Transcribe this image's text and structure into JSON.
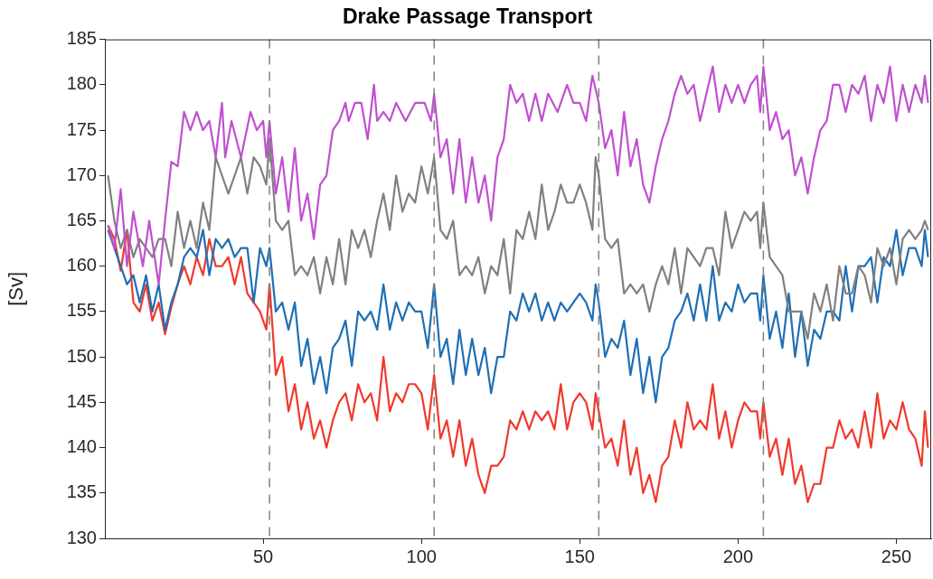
{
  "chart_data": {
    "type": "line",
    "title": "Drake Passage Transport",
    "ylabel": "[Sv]",
    "xlim": [
      0,
      261
    ],
    "xticks": [
      50,
      100,
      150,
      200,
      250
    ],
    "ylim": [
      130,
      185
    ],
    "yticks": [
      130,
      135,
      140,
      145,
      150,
      155,
      160,
      165,
      170,
      175,
      180,
      185
    ],
    "grid": false,
    "legend": false,
    "marker": "none",
    "line_style": "solid",
    "ref_lines": [
      {
        "axis": "x",
        "value": 52,
        "color": "#808080",
        "line_style": "dashed"
      },
      {
        "axis": "x",
        "value": 104,
        "color": "#808080",
        "line_style": "dashed"
      },
      {
        "axis": "x",
        "value": 156,
        "color": "#808080",
        "line_style": "dashed"
      },
      {
        "axis": "x",
        "value": 208,
        "color": "#808080",
        "line_style": "dashed"
      }
    ],
    "series": [
      {
        "color": "#c050d0",
        "x": [
          1,
          3,
          5,
          7,
          9,
          12,
          14,
          17,
          19,
          21,
          23,
          25,
          27,
          29,
          31,
          33,
          35,
          37,
          38,
          40,
          43,
          46,
          48,
          50,
          51,
          52,
          54,
          56,
          58,
          60,
          62,
          64,
          66,
          68,
          70,
          72,
          74,
          76,
          77,
          79,
          81,
          83,
          85,
          86,
          88,
          90,
          92,
          95,
          98,
          101,
          103,
          104,
          106,
          108,
          110,
          112,
          114,
          116,
          118,
          120,
          122,
          124,
          126,
          128,
          130,
          132,
          134,
          136,
          138,
          140,
          143,
          146,
          148,
          150,
          152,
          154,
          156,
          158,
          160,
          162,
          164,
          166,
          168,
          170,
          172,
          174,
          176,
          178,
          180,
          182,
          184,
          186,
          188,
          190,
          192,
          194,
          196,
          198,
          200,
          202,
          204,
          206,
          207,
          208,
          210,
          212,
          214,
          216,
          218,
          220,
          222,
          224,
          226,
          228,
          230,
          232,
          234,
          236,
          238,
          240,
          242,
          244,
          246,
          248,
          250,
          252,
          254,
          256,
          258,
          259,
          260
        ],
        "values": [
          164.5,
          162,
          168.5,
          160,
          166,
          160,
          165,
          158,
          165,
          171.5,
          171,
          177,
          175,
          177,
          175,
          176,
          172,
          178,
          172,
          176,
          172,
          177,
          175,
          176,
          172,
          176,
          168,
          172,
          166,
          173,
          165,
          168,
          163,
          169,
          170,
          175,
          176,
          178,
          176,
          178,
          178,
          174,
          180,
          176,
          177,
          176,
          178,
          176,
          178,
          178,
          176,
          179,
          172,
          174,
          168,
          174,
          167,
          172,
          167,
          170,
          165,
          172,
          174,
          180,
          178,
          179,
          176,
          179,
          176,
          179,
          177,
          180,
          178,
          178,
          176,
          181,
          178,
          173,
          175,
          170,
          177,
          171,
          174,
          169,
          167,
          171,
          174,
          176,
          179,
          181,
          179,
          180,
          176,
          179,
          182,
          177,
          180,
          178,
          180,
          178,
          180,
          181,
          177,
          182,
          175,
          177,
          174,
          175,
          170,
          172,
          168,
          172,
          175,
          176,
          180,
          180,
          177,
          180,
          179,
          181,
          176,
          180,
          178,
          182,
          176,
          180,
          177,
          180,
          178,
          181,
          178
        ]
      },
      {
        "color": "#808080",
        "x": [
          1,
          3,
          5,
          7,
          9,
          11,
          13,
          15,
          17,
          19,
          21,
          23,
          25,
          27,
          29,
          31,
          33,
          35,
          37,
          39,
          41,
          43,
          45,
          47,
          49,
          51,
          52,
          54,
          56,
          58,
          60,
          62,
          64,
          66,
          68,
          70,
          72,
          74,
          76,
          78,
          80,
          82,
          84,
          86,
          88,
          90,
          92,
          94,
          96,
          98,
          100,
          102,
          104,
          106,
          108,
          110,
          112,
          114,
          116,
          118,
          120,
          122,
          124,
          126,
          128,
          130,
          132,
          134,
          136,
          138,
          140,
          142,
          144,
          146,
          148,
          150,
          152,
          154,
          155,
          156,
          158,
          160,
          162,
          164,
          166,
          168,
          170,
          172,
          174,
          176,
          178,
          180,
          182,
          184,
          186,
          188,
          190,
          192,
          194,
          196,
          198,
          200,
          202,
          204,
          206,
          207,
          208,
          210,
          212,
          214,
          216,
          218,
          220,
          222,
          224,
          226,
          228,
          230,
          232,
          234,
          236,
          238,
          240,
          242,
          244,
          246,
          248,
          250,
          252,
          254,
          256,
          258,
          259,
          260
        ],
        "values": [
          170,
          165,
          162,
          164,
          161,
          163,
          162,
          161,
          163,
          163,
          160,
          166,
          162,
          165,
          162,
          167,
          164,
          172,
          170,
          168,
          170,
          172,
          168,
          172,
          171,
          169,
          174,
          165,
          164,
          165,
          159,
          160,
          159,
          161,
          157,
          161,
          158,
          163,
          158,
          164,
          162,
          164,
          161,
          165,
          168,
          164,
          170,
          166,
          168,
          167,
          171,
          168,
          172,
          164,
          163,
          165,
          159,
          160,
          159,
          161,
          157,
          160,
          159,
          163,
          157,
          164,
          163,
          166,
          163,
          169,
          164,
          166,
          169,
          167,
          167,
          169,
          167,
          164,
          172,
          170,
          163,
          162,
          163,
          157,
          158,
          157,
          158,
          155,
          158,
          160,
          158,
          162,
          157,
          162,
          161,
          160,
          162,
          162,
          159,
          166,
          162,
          164,
          166,
          165,
          166,
          162,
          167,
          161,
          160,
          159,
          155,
          155,
          155,
          152,
          157,
          155,
          158,
          154,
          160,
          157,
          157,
          160,
          159,
          156,
          162,
          160,
          162,
          158,
          163,
          164,
          163,
          164,
          165,
          164
        ]
      },
      {
        "color": "#1f6fb5",
        "x": [
          1,
          3,
          5,
          7,
          9,
          11,
          13,
          15,
          17,
          19,
          21,
          23,
          25,
          27,
          29,
          31,
          33,
          35,
          37,
          39,
          41,
          43,
          45,
          47,
          49,
          51,
          52,
          54,
          56,
          58,
          60,
          62,
          64,
          66,
          68,
          70,
          72,
          74,
          76,
          78,
          80,
          82,
          84,
          86,
          88,
          90,
          92,
          94,
          96,
          98,
          100,
          102,
          104,
          106,
          108,
          110,
          112,
          114,
          116,
          118,
          120,
          122,
          124,
          126,
          128,
          130,
          132,
          134,
          136,
          138,
          140,
          142,
          144,
          146,
          148,
          150,
          152,
          154,
          155,
          156,
          158,
          160,
          162,
          164,
          166,
          168,
          170,
          172,
          174,
          176,
          178,
          180,
          182,
          184,
          186,
          188,
          190,
          192,
          194,
          196,
          198,
          200,
          202,
          204,
          206,
          207,
          208,
          210,
          212,
          214,
          216,
          218,
          220,
          222,
          224,
          226,
          228,
          230,
          232,
          234,
          236,
          238,
          240,
          242,
          244,
          246,
          248,
          250,
          252,
          254,
          256,
          258,
          259,
          260
        ],
        "values": [
          164,
          162,
          160,
          158,
          159,
          156,
          159,
          155,
          158,
          153,
          156,
          158,
          161,
          162,
          161,
          164,
          159,
          163,
          162,
          163,
          161,
          162,
          162,
          156,
          162,
          160,
          162,
          155,
          156,
          153,
          156,
          149,
          152,
          147,
          150,
          146,
          151,
          152,
          154,
          149,
          155,
          154,
          155,
          153,
          158,
          153,
          156,
          154,
          156,
          155,
          155,
          151,
          158,
          150,
          152,
          147,
          153,
          148,
          152,
          148,
          151,
          146,
          150,
          150,
          155,
          154,
          157,
          155,
          157,
          154,
          156,
          154,
          156,
          155,
          156,
          157,
          156,
          154,
          158,
          156,
          150,
          152,
          151,
          154,
          148,
          152,
          146,
          150,
          145,
          150,
          151,
          154,
          155,
          157,
          154,
          158,
          154,
          160,
          154,
          156,
          155,
          158,
          156,
          157,
          157,
          154,
          159,
          152,
          155,
          151,
          157,
          150,
          155,
          149,
          153,
          152,
          155,
          155,
          154,
          160,
          155,
          160,
          160,
          161,
          156,
          161,
          160,
          164,
          159,
          162,
          162,
          160,
          164,
          161
        ]
      },
      {
        "color": "#f0392b",
        "x": [
          1,
          3,
          5,
          7,
          9,
          11,
          13,
          15,
          17,
          19,
          21,
          23,
          25,
          27,
          29,
          31,
          33,
          35,
          37,
          39,
          41,
          43,
          45,
          47,
          49,
          51,
          52,
          54,
          56,
          58,
          60,
          62,
          64,
          66,
          68,
          70,
          72,
          74,
          76,
          78,
          80,
          82,
          84,
          86,
          88,
          90,
          92,
          94,
          96,
          98,
          100,
          102,
          104,
          106,
          108,
          110,
          112,
          114,
          116,
          118,
          120,
          122,
          124,
          126,
          128,
          130,
          132,
          134,
          136,
          138,
          140,
          142,
          144,
          146,
          148,
          150,
          152,
          154,
          155,
          156,
          158,
          160,
          162,
          164,
          166,
          168,
          170,
          172,
          174,
          176,
          178,
          180,
          182,
          184,
          186,
          188,
          190,
          192,
          194,
          196,
          198,
          200,
          202,
          204,
          206,
          207,
          208,
          210,
          212,
          214,
          216,
          218,
          220,
          222,
          224,
          226,
          228,
          230,
          232,
          234,
          236,
          238,
          240,
          242,
          244,
          246,
          248,
          250,
          252,
          254,
          256,
          258,
          259,
          260
        ],
        "values": [
          164.5,
          163,
          159.5,
          164,
          156,
          155,
          158,
          154,
          156,
          152.5,
          155.5,
          158,
          160,
          158,
          161,
          159,
          163,
          160,
          160,
          161,
          158,
          161,
          157,
          156,
          155,
          153,
          158,
          148,
          150,
          144,
          147,
          142,
          145,
          141,
          143,
          140,
          143,
          145,
          146,
          143,
          147,
          145,
          146,
          143,
          150,
          144,
          146,
          145,
          147,
          147,
          146,
          142,
          148,
          141,
          143,
          139,
          143,
          138,
          141,
          137,
          135,
          138,
          138,
          139,
          143,
          142,
          144,
          142,
          144,
          143,
          144,
          142,
          147,
          142,
          145,
          146,
          145,
          142,
          146,
          144,
          140,
          141,
          138,
          143,
          137,
          140,
          135,
          137,
          134,
          138,
          139,
          143,
          140,
          145,
          142,
          143,
          142,
          147,
          141,
          144,
          140,
          143,
          145,
          144,
          144,
          141,
          145,
          139,
          141,
          137,
          141,
          136,
          138,
          134,
          136,
          136,
          140,
          140,
          143,
          141,
          142,
          140,
          144,
          140,
          146,
          141,
          143,
          142,
          145,
          142,
          141,
          138,
          144,
          140
        ]
      }
    ]
  }
}
